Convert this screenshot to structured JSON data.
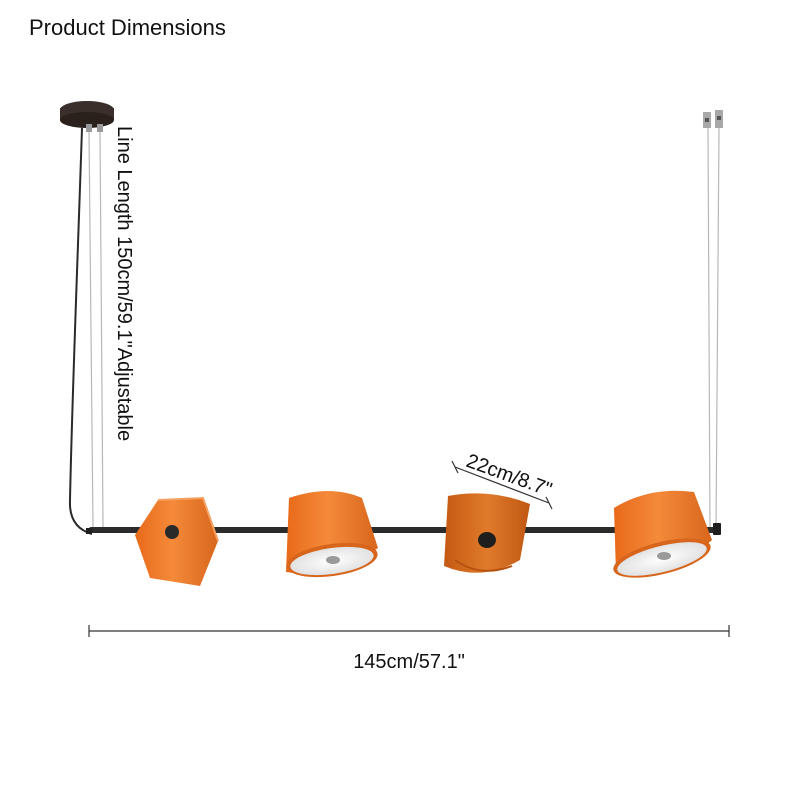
{
  "title": "Product Dimensions",
  "dimensions": {
    "line_length": "Line Length 150cm/59.1\"Adjustable",
    "shade_diameter": "22cm/8.7\"",
    "total_length": "145cm/57.1\""
  },
  "colors": {
    "shade_orange": "#f07a2a",
    "shade_dark_orange": "#c85f14",
    "bar": "#2b2b2b",
    "canopy": "#3a2f2a"
  }
}
